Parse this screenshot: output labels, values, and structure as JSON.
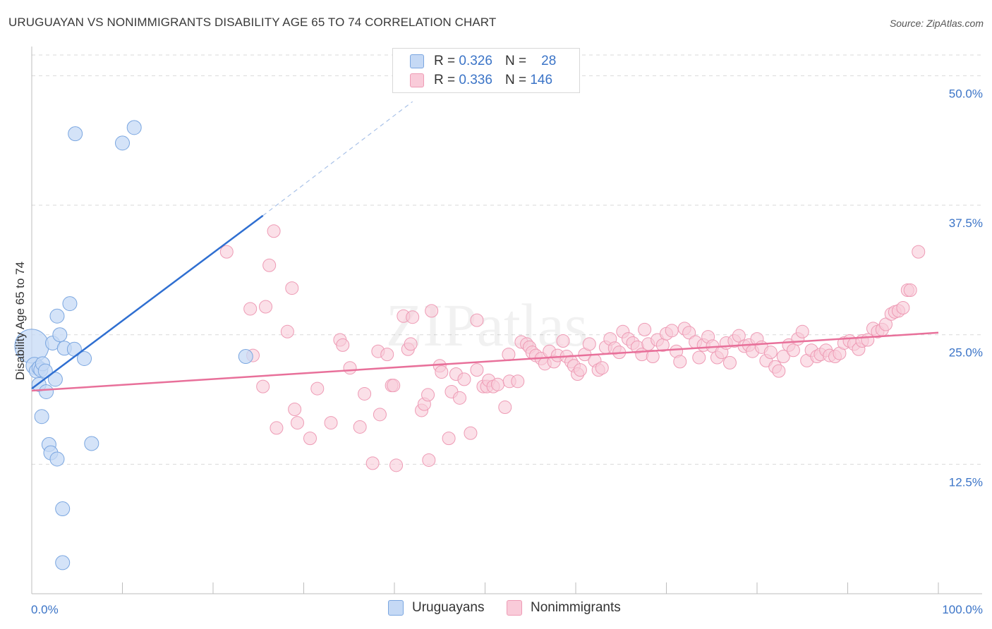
{
  "title": "URUGUAYAN VS NONIMMIGRANTS DISABILITY AGE 65 TO 74 CORRELATION CHART",
  "source": "Source: ZipAtlas.com",
  "watermark": "ZIPatlas",
  "legend": {
    "rows": [
      {
        "r_label": "R = ",
        "r_value": "0.326",
        "n_label": "N = ",
        "n_value": "28"
      },
      {
        "r_label": "R = ",
        "r_value": "0.336",
        "n_label": "N = ",
        "n_value": "146"
      }
    ]
  },
  "bottom_legend": [
    "Uruguayans",
    "Nonimmigrants"
  ],
  "colors": {
    "blue_fill": "#c5d9f5",
    "blue_stroke": "#7aa6e0",
    "blue_line": "#2f6fd1",
    "pink_fill": "#f9cbd9",
    "pink_stroke": "#ee9bb5",
    "pink_line": "#e8709a",
    "tick_label": "#3b74c7",
    "grid": "#d9d9d9"
  },
  "chart_data": {
    "type": "scatter",
    "title": "URUGUAYAN VS NONIMMIGRANTS DISABILITY AGE 65 TO 74 CORRELATION CHART",
    "xlabel": "",
    "ylabel": "Disability Age 65 to 74",
    "xlim": [
      0,
      100
    ],
    "ylim": [
      0,
      52
    ],
    "x_tick_labels": [
      "0.0%",
      "100.0%"
    ],
    "y_ticks": [
      12.5,
      25.0,
      37.5,
      50.0
    ],
    "y_tick_labels": [
      "12.5%",
      "25.0%",
      "37.5%",
      "50.0%"
    ],
    "series": [
      {
        "name": "Uruguayans",
        "R": 0.326,
        "N": 28,
        "points": [
          [
            0.0,
            23.9,
            24
          ],
          [
            0.3,
            22.0,
            12
          ],
          [
            0.5,
            21.5,
            10
          ],
          [
            0.8,
            21.8,
            10
          ],
          [
            1.0,
            21.6,
            10
          ],
          [
            1.2,
            22.2,
            10
          ],
          [
            1.5,
            21.5,
            10
          ],
          [
            0.8,
            20.2,
            10
          ],
          [
            1.6,
            19.5,
            10
          ],
          [
            1.1,
            17.1,
            10
          ],
          [
            2.3,
            24.2,
            10
          ],
          [
            2.8,
            26.8,
            10
          ],
          [
            3.1,
            25.0,
            10
          ],
          [
            3.6,
            23.7,
            10
          ],
          [
            4.2,
            28.0,
            10
          ],
          [
            4.7,
            23.6,
            10
          ],
          [
            5.8,
            22.7,
            10
          ],
          [
            2.6,
            20.7,
            10
          ],
          [
            1.9,
            14.4,
            10
          ],
          [
            2.1,
            13.6,
            10
          ],
          [
            2.8,
            13.0,
            10
          ],
          [
            6.6,
            14.5,
            10
          ],
          [
            3.4,
            8.2,
            10
          ],
          [
            3.4,
            3.0,
            10
          ],
          [
            4.8,
            44.4,
            10
          ],
          [
            10.0,
            43.5,
            10
          ],
          [
            11.3,
            45.0,
            10
          ],
          [
            23.6,
            22.9,
            10
          ]
        ],
        "trend": {
          "x0": 0,
          "y0": 19.8,
          "x1": 25.5,
          "y1": 36.5,
          "dash_to_x": 42,
          "dash_to_y": 47.5
        }
      },
      {
        "name": "Nonimmigrants",
        "R": 0.336,
        "N": 146,
        "points": [
          [
            21.5,
            33.0
          ],
          [
            26.7,
            35.0
          ],
          [
            26.2,
            31.7
          ],
          [
            28.7,
            29.5
          ],
          [
            24.1,
            27.5
          ],
          [
            25.8,
            27.7
          ],
          [
            24.4,
            23.0
          ],
          [
            25.5,
            20.0
          ],
          [
            27.0,
            16.0
          ],
          [
            28.2,
            25.3
          ],
          [
            29.0,
            17.8
          ],
          [
            29.3,
            16.5
          ],
          [
            30.7,
            15.0
          ],
          [
            31.5,
            19.8
          ],
          [
            33.0,
            16.5
          ],
          [
            34.0,
            24.5
          ],
          [
            34.3,
            24.0
          ],
          [
            35.1,
            21.8
          ],
          [
            36.2,
            16.1
          ],
          [
            36.7,
            19.3
          ],
          [
            37.6,
            12.6
          ],
          [
            38.2,
            23.4
          ],
          [
            38.4,
            17.3
          ],
          [
            39.2,
            23.1
          ],
          [
            39.7,
            20.1
          ],
          [
            39.9,
            20.1
          ],
          [
            40.2,
            12.4
          ],
          [
            41.0,
            26.8
          ],
          [
            41.5,
            23.6
          ],
          [
            41.8,
            24.1
          ],
          [
            42.0,
            26.7
          ],
          [
            43.0,
            17.7
          ],
          [
            43.3,
            18.3
          ],
          [
            43.7,
            19.2
          ],
          [
            43.8,
            12.9
          ],
          [
            44.1,
            27.3
          ],
          [
            45.0,
            22.0
          ],
          [
            45.2,
            21.4
          ],
          [
            46.0,
            15.0
          ],
          [
            46.3,
            19.5
          ],
          [
            46.8,
            21.2
          ],
          [
            47.2,
            18.9
          ],
          [
            47.7,
            20.7
          ],
          [
            48.4,
            15.5
          ],
          [
            49.1,
            26.4
          ],
          [
            49.1,
            21.6
          ],
          [
            49.8,
            20.0
          ],
          [
            50.2,
            20.0
          ],
          [
            50.4,
            20.6
          ],
          [
            50.9,
            20.0
          ],
          [
            51.4,
            20.2
          ],
          [
            52.2,
            18.0
          ],
          [
            52.7,
            20.5
          ],
          [
            52.6,
            23.1
          ],
          [
            53.6,
            20.5
          ],
          [
            54.0,
            24.3
          ],
          [
            54.6,
            24.1
          ],
          [
            54.9,
            23.8
          ],
          [
            55.2,
            23.3
          ],
          [
            55.6,
            23.0
          ],
          [
            56.2,
            22.7
          ],
          [
            56.6,
            22.2
          ],
          [
            57.1,
            23.4
          ],
          [
            57.6,
            22.4
          ],
          [
            58.0,
            23.0
          ],
          [
            58.6,
            24.4
          ],
          [
            59.0,
            22.9
          ],
          [
            59.5,
            22.4
          ],
          [
            59.8,
            22.0
          ],
          [
            60.2,
            21.2
          ],
          [
            60.5,
            21.6
          ],
          [
            61.0,
            23.1
          ],
          [
            61.5,
            24.1
          ],
          [
            62.1,
            22.5
          ],
          [
            62.5,
            21.6
          ],
          [
            62.9,
            21.8
          ],
          [
            63.3,
            23.8
          ],
          [
            63.8,
            24.6
          ],
          [
            64.3,
            23.7
          ],
          [
            64.8,
            23.3
          ],
          [
            65.2,
            25.3
          ],
          [
            65.8,
            24.6
          ],
          [
            66.3,
            24.2
          ],
          [
            66.8,
            23.8
          ],
          [
            67.3,
            23.1
          ],
          [
            67.6,
            25.5
          ],
          [
            68.0,
            24.1
          ],
          [
            68.5,
            22.9
          ],
          [
            69.0,
            24.5
          ],
          [
            69.6,
            24.0
          ],
          [
            70.0,
            25.1
          ],
          [
            70.6,
            25.4
          ],
          [
            71.1,
            23.4
          ],
          [
            71.5,
            22.4
          ],
          [
            72.0,
            25.6
          ],
          [
            72.5,
            25.2
          ],
          [
            73.2,
            24.3
          ],
          [
            73.6,
            22.8
          ],
          [
            74.1,
            24.0
          ],
          [
            74.6,
            24.8
          ],
          [
            75.1,
            23.9
          ],
          [
            75.6,
            22.8
          ],
          [
            76.1,
            23.3
          ],
          [
            76.6,
            24.2
          ],
          [
            77.0,
            22.3
          ],
          [
            77.5,
            24.4
          ],
          [
            78.0,
            24.9
          ],
          [
            78.6,
            23.9
          ],
          [
            79.1,
            24.0
          ],
          [
            79.5,
            23.4
          ],
          [
            80.0,
            24.6
          ],
          [
            80.5,
            23.8
          ],
          [
            81.0,
            22.5
          ],
          [
            81.5,
            23.3
          ],
          [
            82.0,
            21.9
          ],
          [
            82.4,
            21.5
          ],
          [
            82.9,
            22.9
          ],
          [
            83.5,
            24.0
          ],
          [
            84.0,
            23.5
          ],
          [
            84.5,
            24.6
          ],
          [
            85.0,
            25.3
          ],
          [
            85.5,
            22.5
          ],
          [
            86.0,
            23.5
          ],
          [
            86.6,
            22.9
          ],
          [
            87.0,
            23.1
          ],
          [
            87.6,
            23.5
          ],
          [
            88.0,
            23.0
          ],
          [
            88.6,
            22.9
          ],
          [
            89.1,
            23.2
          ],
          [
            89.6,
            24.2
          ],
          [
            90.2,
            24.4
          ],
          [
            90.7,
            24.1
          ],
          [
            91.2,
            23.6
          ],
          [
            91.6,
            24.4
          ],
          [
            92.2,
            24.5
          ],
          [
            92.8,
            25.6
          ],
          [
            93.3,
            25.3
          ],
          [
            93.8,
            25.5
          ],
          [
            94.2,
            26.0
          ],
          [
            94.8,
            27.0
          ],
          [
            95.2,
            27.2
          ],
          [
            95.6,
            27.3
          ],
          [
            96.1,
            27.6
          ],
          [
            96.6,
            29.3
          ],
          [
            96.9,
            29.3
          ],
          [
            97.8,
            33.0
          ]
        ],
        "trend": {
          "x0": 0,
          "y0": 19.6,
          "x1": 100,
          "y1": 25.2
        }
      }
    ]
  }
}
